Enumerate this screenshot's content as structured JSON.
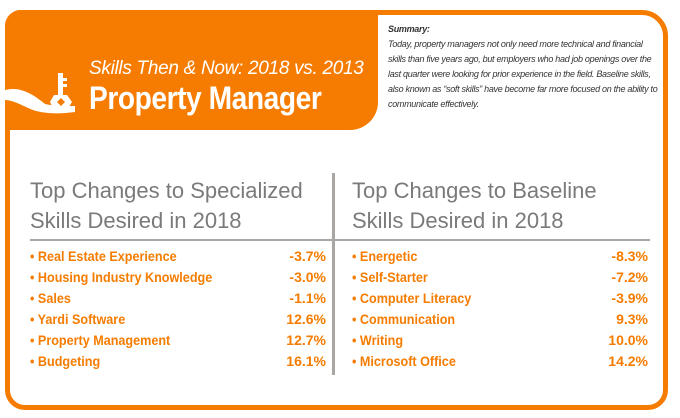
{
  "header": {
    "subtitle": "Skills Then & Now: 2018 vs. 2013",
    "title": "Property Manager",
    "icon": "hand-holding-key-icon"
  },
  "summary": {
    "heading": "Summary:",
    "text": "Today, property managers not only need more technical and financial skills than five years ago, but employers who had job openings over the last quarter were looking for prior experience in the field. Baseline skills, also known as “soft skills” have become far more focused on the ability to communicate effectively."
  },
  "specialized": {
    "heading": "Top Changes to Specialized Skills Desired in 2018",
    "items": [
      {
        "label": "• Real Estate Experience",
        "value": "-3.7%"
      },
      {
        "label": "• Housing Industry Knowledge",
        "value": "-3.0%"
      },
      {
        "label": "• Sales",
        "value": "-1.1%"
      },
      {
        "label": "• Yardi Software",
        "value": "12.6%"
      },
      {
        "label": "• Property Management",
        "value": "12.7%"
      },
      {
        "label": "• Budgeting",
        "value": "16.1%"
      }
    ]
  },
  "baseline": {
    "heading": "Top Changes to Baseline Skills Desired in 2018",
    "items": [
      {
        "label": "• Energetic",
        "value": "-8.3%"
      },
      {
        "label": "• Self-Starter",
        "value": "-7.2%"
      },
      {
        "label": "• Computer Literacy",
        "value": "-3.9%"
      },
      {
        "label": "• Communication",
        "value": "9.3%"
      },
      {
        "label": "• Writing",
        "value": "10.0%"
      },
      {
        "label": "• Microsoft Office",
        "value": "14.2%"
      }
    ]
  },
  "colors": {
    "accent": "#F57C00",
    "heading": "#7a7a7a",
    "divider": "#a9a6a3"
  }
}
